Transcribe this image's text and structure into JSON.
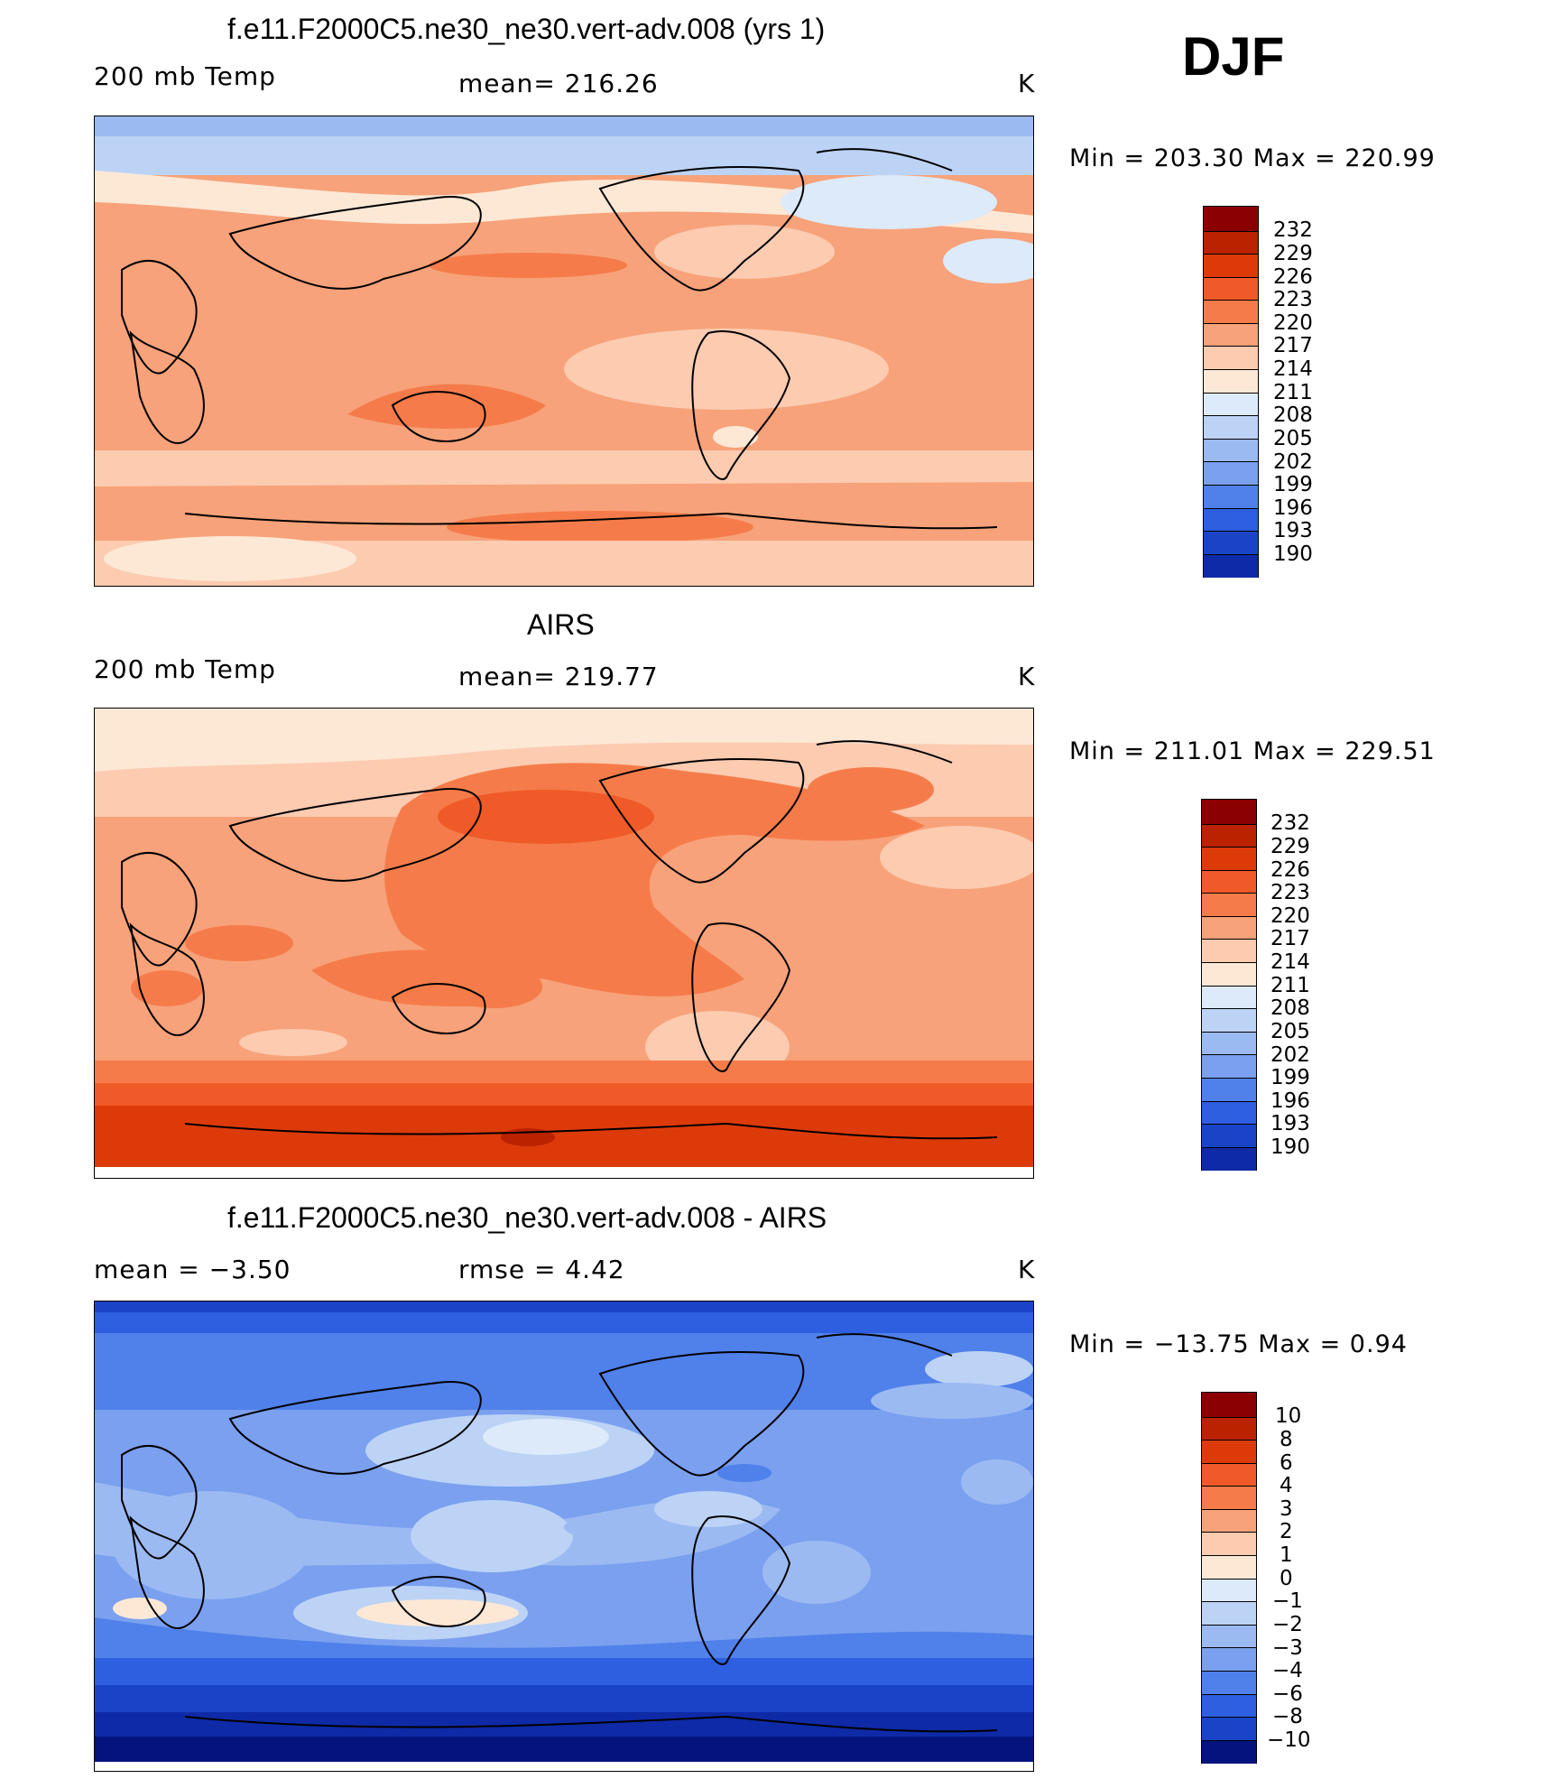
{
  "season": "DJF",
  "panels": [
    {
      "title": "f.e11.F2000C5.ne30_ne30.vert-adv.008 (yrs 1)",
      "left_label": "200 mb Temp",
      "center_label": "mean=  216.26",
      "units": "K",
      "minmax": "Min  =  203.30  Max  =  220.99",
      "colorbar_labels": [
        "232",
        "229",
        "226",
        "223",
        "220",
        "217",
        "214",
        "211",
        "208",
        "205",
        "202",
        "199",
        "196",
        "193",
        "190"
      ]
    },
    {
      "title": "AIRS",
      "left_label": "200 mb Temp",
      "center_label": "mean=  219.77",
      "units": "K",
      "minmax": "Min  =  211.01  Max  =  229.51",
      "colorbar_labels": [
        "232",
        "229",
        "226",
        "223",
        "220",
        "217",
        "214",
        "211",
        "208",
        "205",
        "202",
        "199",
        "196",
        "193",
        "190"
      ]
    },
    {
      "title": "f.e11.F2000C5.ne30_ne30.vert-adv.008 - AIRS",
      "left_label": "mean =      −3.50",
      "center_label": "rmse  =      4.42",
      "units": "K",
      "minmax": "Min  =  −13.75  Max  =      0.94",
      "colorbar_labels": [
        "10",
        "8",
        "6",
        "4",
        "3",
        "2",
        "1",
        "0",
        "−1",
        "−2",
        "−3",
        "−4",
        "−6",
        "−8",
        "−10"
      ]
    }
  ],
  "colors": {
    "palette": [
      "#8b0000",
      "#bb2200",
      "#dd3a0a",
      "#f05a28",
      "#f57c4a",
      "#f7a27a",
      "#fccbb0",
      "#fde8d6",
      "#dceafa",
      "#bcd3f6",
      "#9cbaf2",
      "#7aa0ef",
      "#5081ea",
      "#2e5fe0",
      "#1a44c8",
      "#0e2aa6",
      "#05137f"
    ],
    "outline": "#000000"
  }
}
